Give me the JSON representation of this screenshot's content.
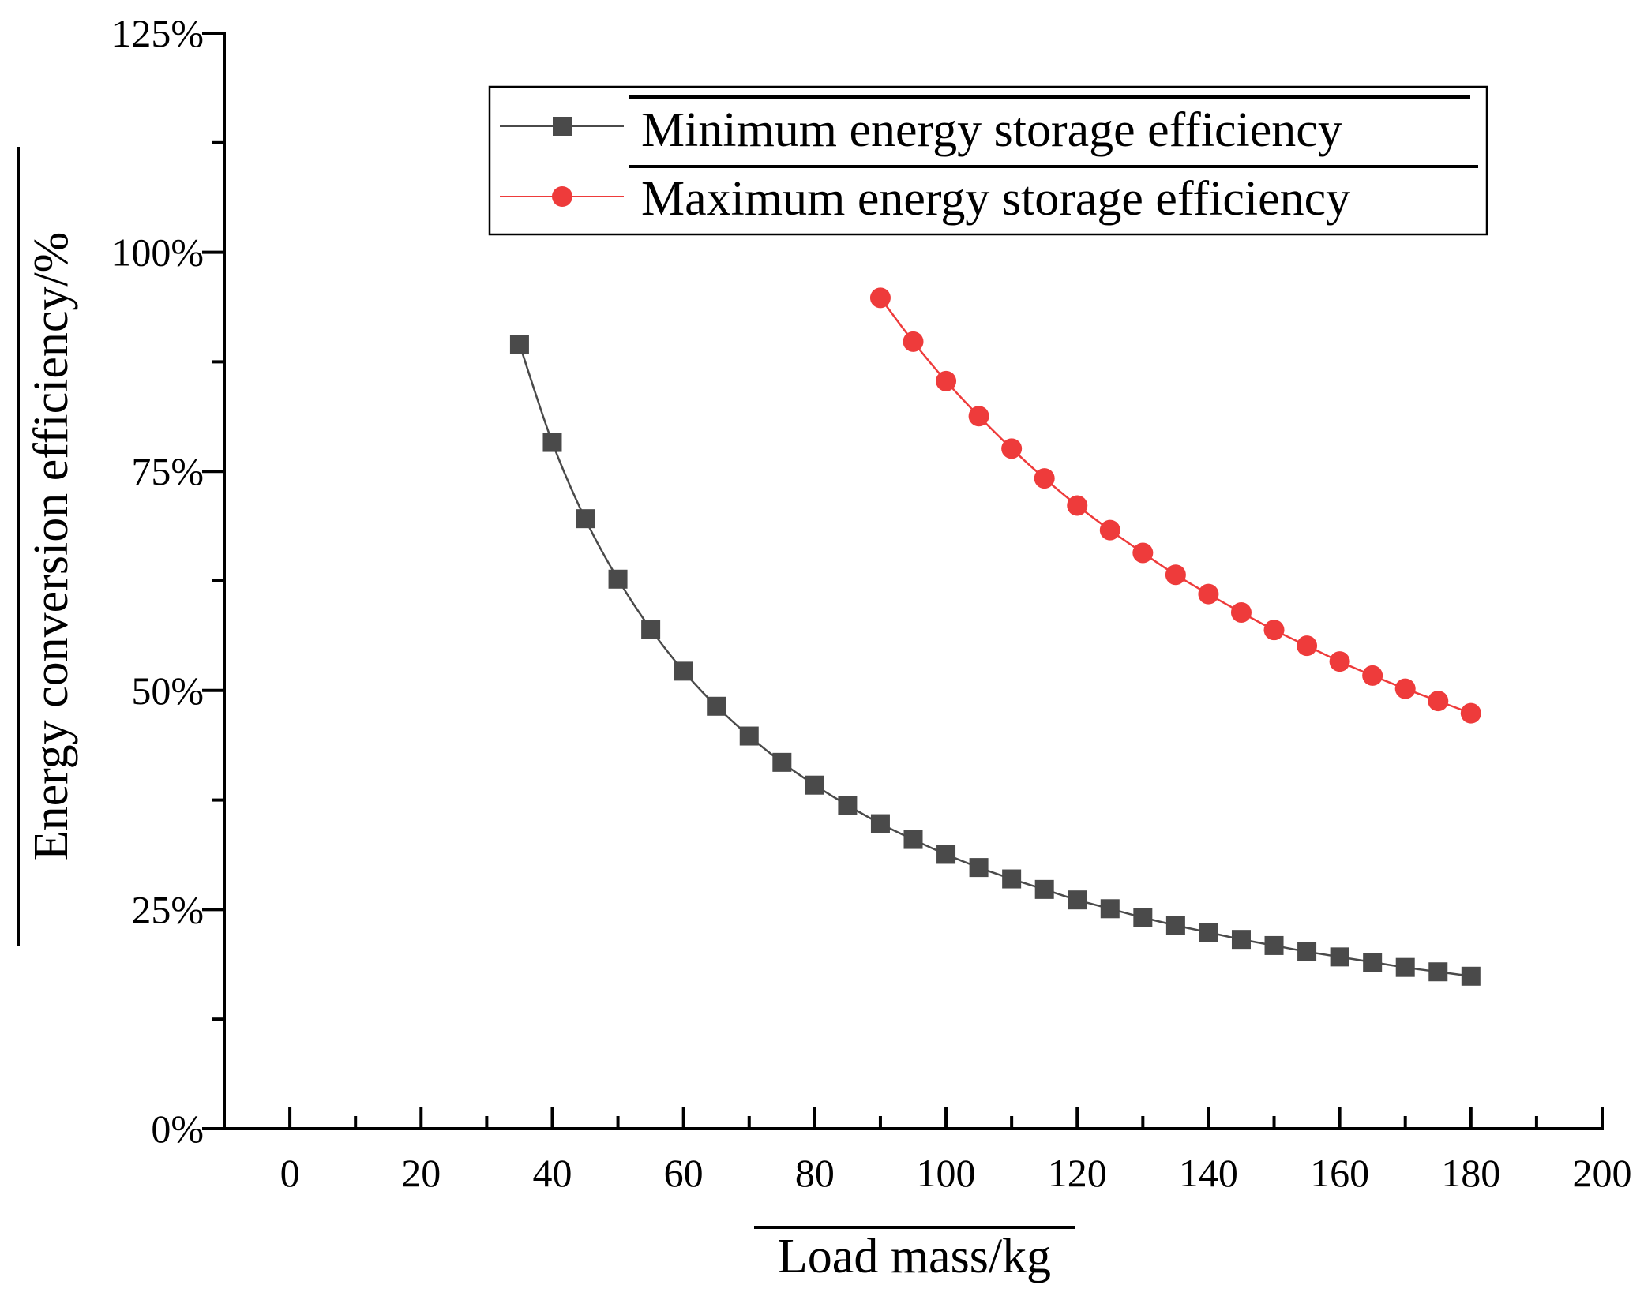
{
  "chart_data": {
    "type": "line",
    "title": "",
    "xlabel": "Load mass/kg",
    "ylabel": "Energy conversion efficiency/%",
    "xlim": [
      -10,
      200
    ],
    "ylim": [
      0,
      125
    ],
    "x_ticks": [
      0,
      20,
      40,
      60,
      80,
      100,
      120,
      140,
      160,
      180,
      200
    ],
    "x_tick_labels": [
      "0",
      "20",
      "40",
      "60",
      "80",
      "100",
      "120",
      "140",
      "160",
      "180",
      "200"
    ],
    "y_ticks": [
      0,
      25,
      50,
      75,
      100,
      125
    ],
    "y_tick_labels": [
      "0%",
      "25%",
      "50%",
      "75%",
      "100%",
      "125%"
    ],
    "grid": false,
    "legend_position": "top-right",
    "series": [
      {
        "name": "Minimum energy storage efficiency",
        "color": "#4a4a4a",
        "marker": "square",
        "x": [
          35,
          40,
          45,
          50,
          55,
          60,
          65,
          70,
          75,
          80,
          85,
          90,
          95,
          100,
          105,
          110,
          115,
          120,
          125,
          130,
          135,
          140,
          145,
          150,
          155,
          160,
          165,
          170,
          175,
          180
        ],
        "y": [
          89.5,
          78.3,
          69.6,
          62.7,
          57.0,
          52.2,
          48.2,
          44.8,
          41.8,
          39.2,
          36.9,
          34.8,
          33.0,
          31.3,
          29.8,
          28.5,
          27.3,
          26.1,
          25.1,
          24.1,
          23.2,
          22.4,
          21.6,
          20.9,
          20.2,
          19.6,
          19.0,
          18.4,
          17.9,
          17.4
        ]
      },
      {
        "name": "Maximum energy storage efficiency",
        "color": "#ee3b3b",
        "marker": "circle",
        "x": [
          90,
          95,
          100,
          105,
          110,
          115,
          120,
          125,
          130,
          135,
          140,
          145,
          150,
          155,
          160,
          165,
          170,
          175,
          180
        ],
        "y": [
          94.8,
          89.8,
          85.3,
          81.3,
          77.6,
          74.2,
          71.1,
          68.3,
          65.7,
          63.2,
          61.0,
          58.9,
          56.9,
          55.1,
          53.3,
          51.7,
          50.2,
          48.8,
          47.4
        ]
      }
    ]
  }
}
